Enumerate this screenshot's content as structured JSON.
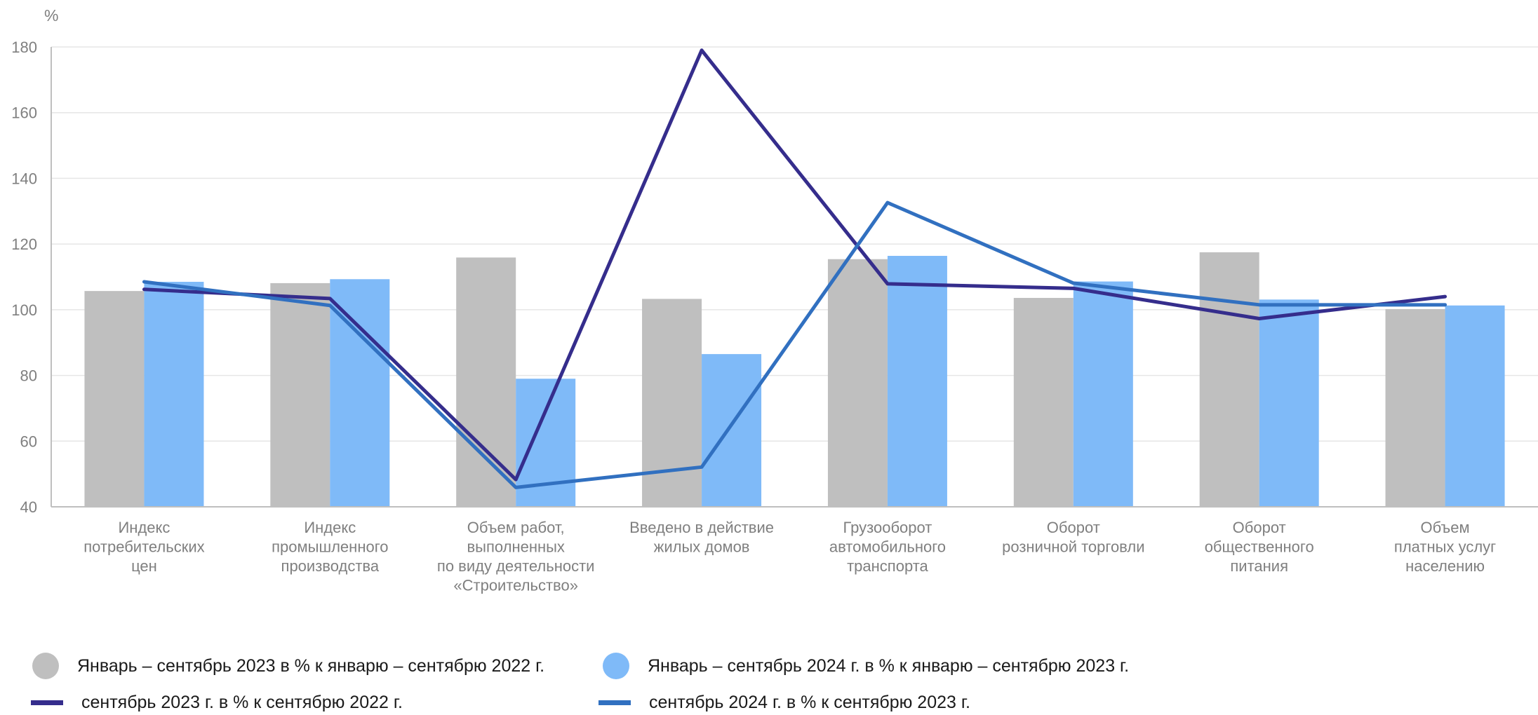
{
  "chart_data": {
    "type": "bar",
    "ylabel": "%",
    "ylim": [
      40,
      180
    ],
    "yticks": [
      40,
      60,
      80,
      100,
      120,
      140,
      160,
      180
    ],
    "grid": true,
    "legend_position": "bottom",
    "categories": [
      [
        "Индекс",
        "потребительских",
        "цен"
      ],
      [
        "Индекс",
        "промышленного",
        "производства"
      ],
      [
        "Объем работ,",
        "выполненных",
        "по виду деятельности",
        "«Строительство»"
      ],
      [
        "Введено в действие",
        "жилых домов"
      ],
      [
        "Грузооборот",
        "автомобильного",
        "транспорта"
      ],
      [
        "Оборот",
        "розничной торговли"
      ],
      [
        "Оборот",
        "общественного",
        "питания"
      ],
      [
        "Объем",
        "платных услуг",
        "населению"
      ]
    ],
    "series": [
      {
        "name": "Январь – сентябрь 2023 в % к январю – сентябрю 2022 г.",
        "kind": "bar",
        "color": "#bfbfbf",
        "values": [
          105.7,
          108.1,
          115.9,
          103.3,
          115.4,
          103.6,
          117.5,
          100.2
        ]
      },
      {
        "name": "Январь – сентябрь 2024 г. в % к январю – сентябрю 2023 г.",
        "kind": "bar",
        "color": "#7fbaf8",
        "values": [
          108.5,
          109.3,
          79.0,
          86.5,
          116.4,
          108.6,
          103.1,
          101.3
        ]
      },
      {
        "name": "сентябрь 2023 г. в % к сентябрю 2022 г.",
        "kind": "line",
        "color": "#352d8c",
        "values": [
          106.2,
          103.4,
          48.3,
          179.0,
          107.9,
          106.5,
          97.3,
          104.0
        ]
      },
      {
        "name": "сентябрь 2024 г. в % к сентябрю 2023 г.",
        "kind": "line",
        "color": "#3170c0",
        "values": [
          108.5,
          101.3,
          45.9,
          52.1,
          132.6,
          108.1,
          101.5,
          101.5
        ]
      }
    ]
  }
}
